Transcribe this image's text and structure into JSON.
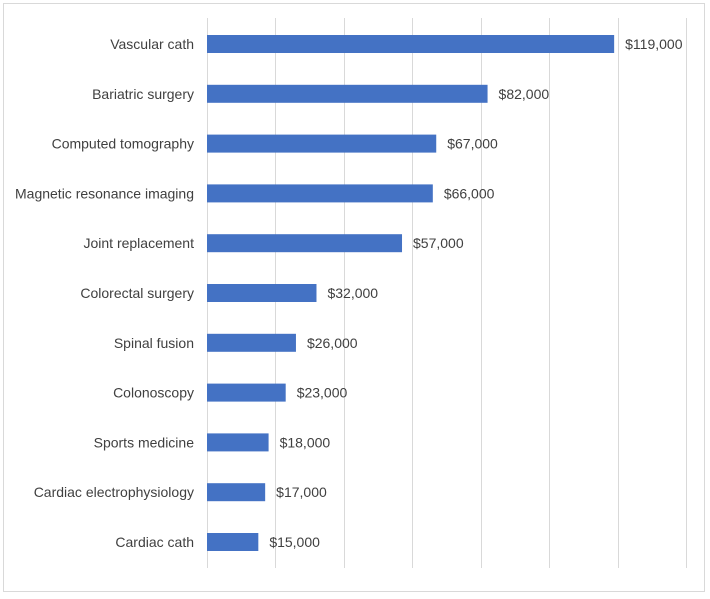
{
  "chart_data": {
    "type": "bar",
    "orientation": "horizontal",
    "title": "",
    "xlabel": "",
    "ylabel": "",
    "grid": true,
    "legend": "none",
    "xlim": [
      0,
      140000
    ],
    "categories": [
      "Vascular cath",
      "Bariatric surgery",
      "Computed tomography",
      "Magnetic resonance imaging",
      "Joint replacement",
      "Colorectal surgery",
      "Spinal fusion",
      "Colonoscopy",
      "Sports medicine",
      "Cardiac electrophysiology",
      "Cardiac cath"
    ],
    "values": [
      119000,
      82000,
      67000,
      66000,
      57000,
      32000,
      26000,
      23000,
      18000,
      17000,
      15000
    ],
    "data_labels": [
      "$119,000",
      "$82,000",
      "$67,000",
      "$66,000",
      "$57,000",
      "$32,000",
      "$26,000",
      "$23,000",
      "$18,000",
      "$17,000",
      "$15,000"
    ],
    "bar_color": "#4472c4"
  }
}
